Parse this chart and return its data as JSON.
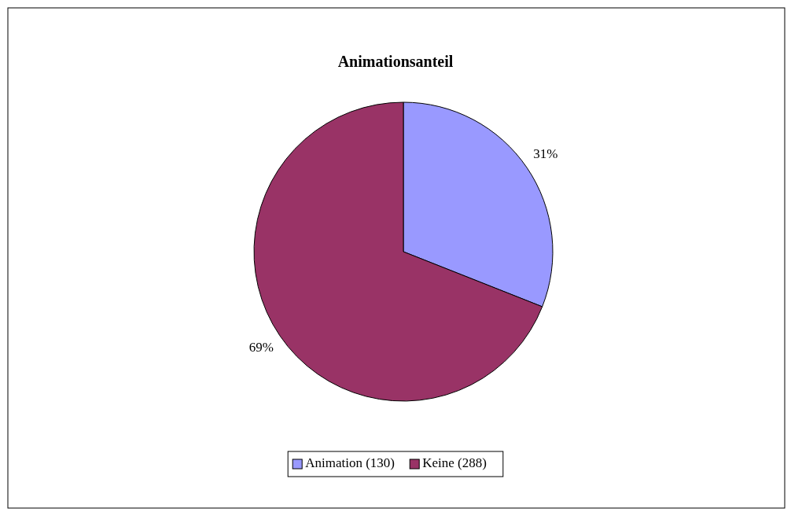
{
  "chart_data": {
    "type": "pie",
    "title": "Animationsanteil",
    "categories": [
      "Animation (130)",
      "Keine (288)"
    ],
    "values": [
      31,
      69
    ],
    "value_labels": [
      "31%",
      "69%"
    ],
    "colors": [
      "#9999ff",
      "#993366"
    ],
    "legend": "bottom"
  }
}
